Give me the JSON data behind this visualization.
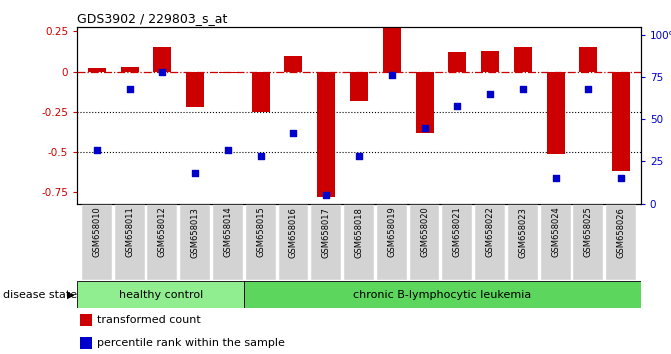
{
  "title": "GDS3902 / 229803_s_at",
  "samples": [
    "GSM658010",
    "GSM658011",
    "GSM658012",
    "GSM658013",
    "GSM658014",
    "GSM658015",
    "GSM658016",
    "GSM658017",
    "GSM658018",
    "GSM658019",
    "GSM658020",
    "GSM658021",
    "GSM658022",
    "GSM658023",
    "GSM658024",
    "GSM658025",
    "GSM658026"
  ],
  "bar_values": [
    0.02,
    0.03,
    0.15,
    -0.22,
    -0.01,
    -0.25,
    0.1,
    -0.78,
    -0.18,
    0.27,
    -0.38,
    0.12,
    0.13,
    0.15,
    -0.51,
    0.15,
    -0.62
  ],
  "dot_values": [
    32,
    68,
    78,
    18,
    32,
    28,
    42,
    5,
    28,
    76,
    45,
    58,
    65,
    68,
    15,
    68,
    15
  ],
  "bar_color": "#cc0000",
  "dot_color": "#0000cc",
  "ylim_left": [
    -0.82,
    0.28
  ],
  "ylim_right": [
    0,
    105
  ],
  "yticks_left": [
    0.25,
    0.0,
    -0.25,
    -0.5,
    -0.75
  ],
  "yticks_right": [
    0,
    25,
    50,
    75,
    100
  ],
  "ytick_right_labels": [
    "0",
    "25",
    "50",
    "75",
    "100%"
  ],
  "hlines": [
    -0.25,
    -0.5
  ],
  "healthy_count": 5,
  "disease_label_healthy": "healthy control",
  "disease_label_chronic": "chronic B-lymphocytic leukemia",
  "disease_state_label": "disease state",
  "legend_bar": "transformed count",
  "legend_dot": "percentile rank within the sample",
  "bg_healthy": "#90ee90",
  "bg_chronic": "#5cd65c",
  "bar_width": 0.55
}
